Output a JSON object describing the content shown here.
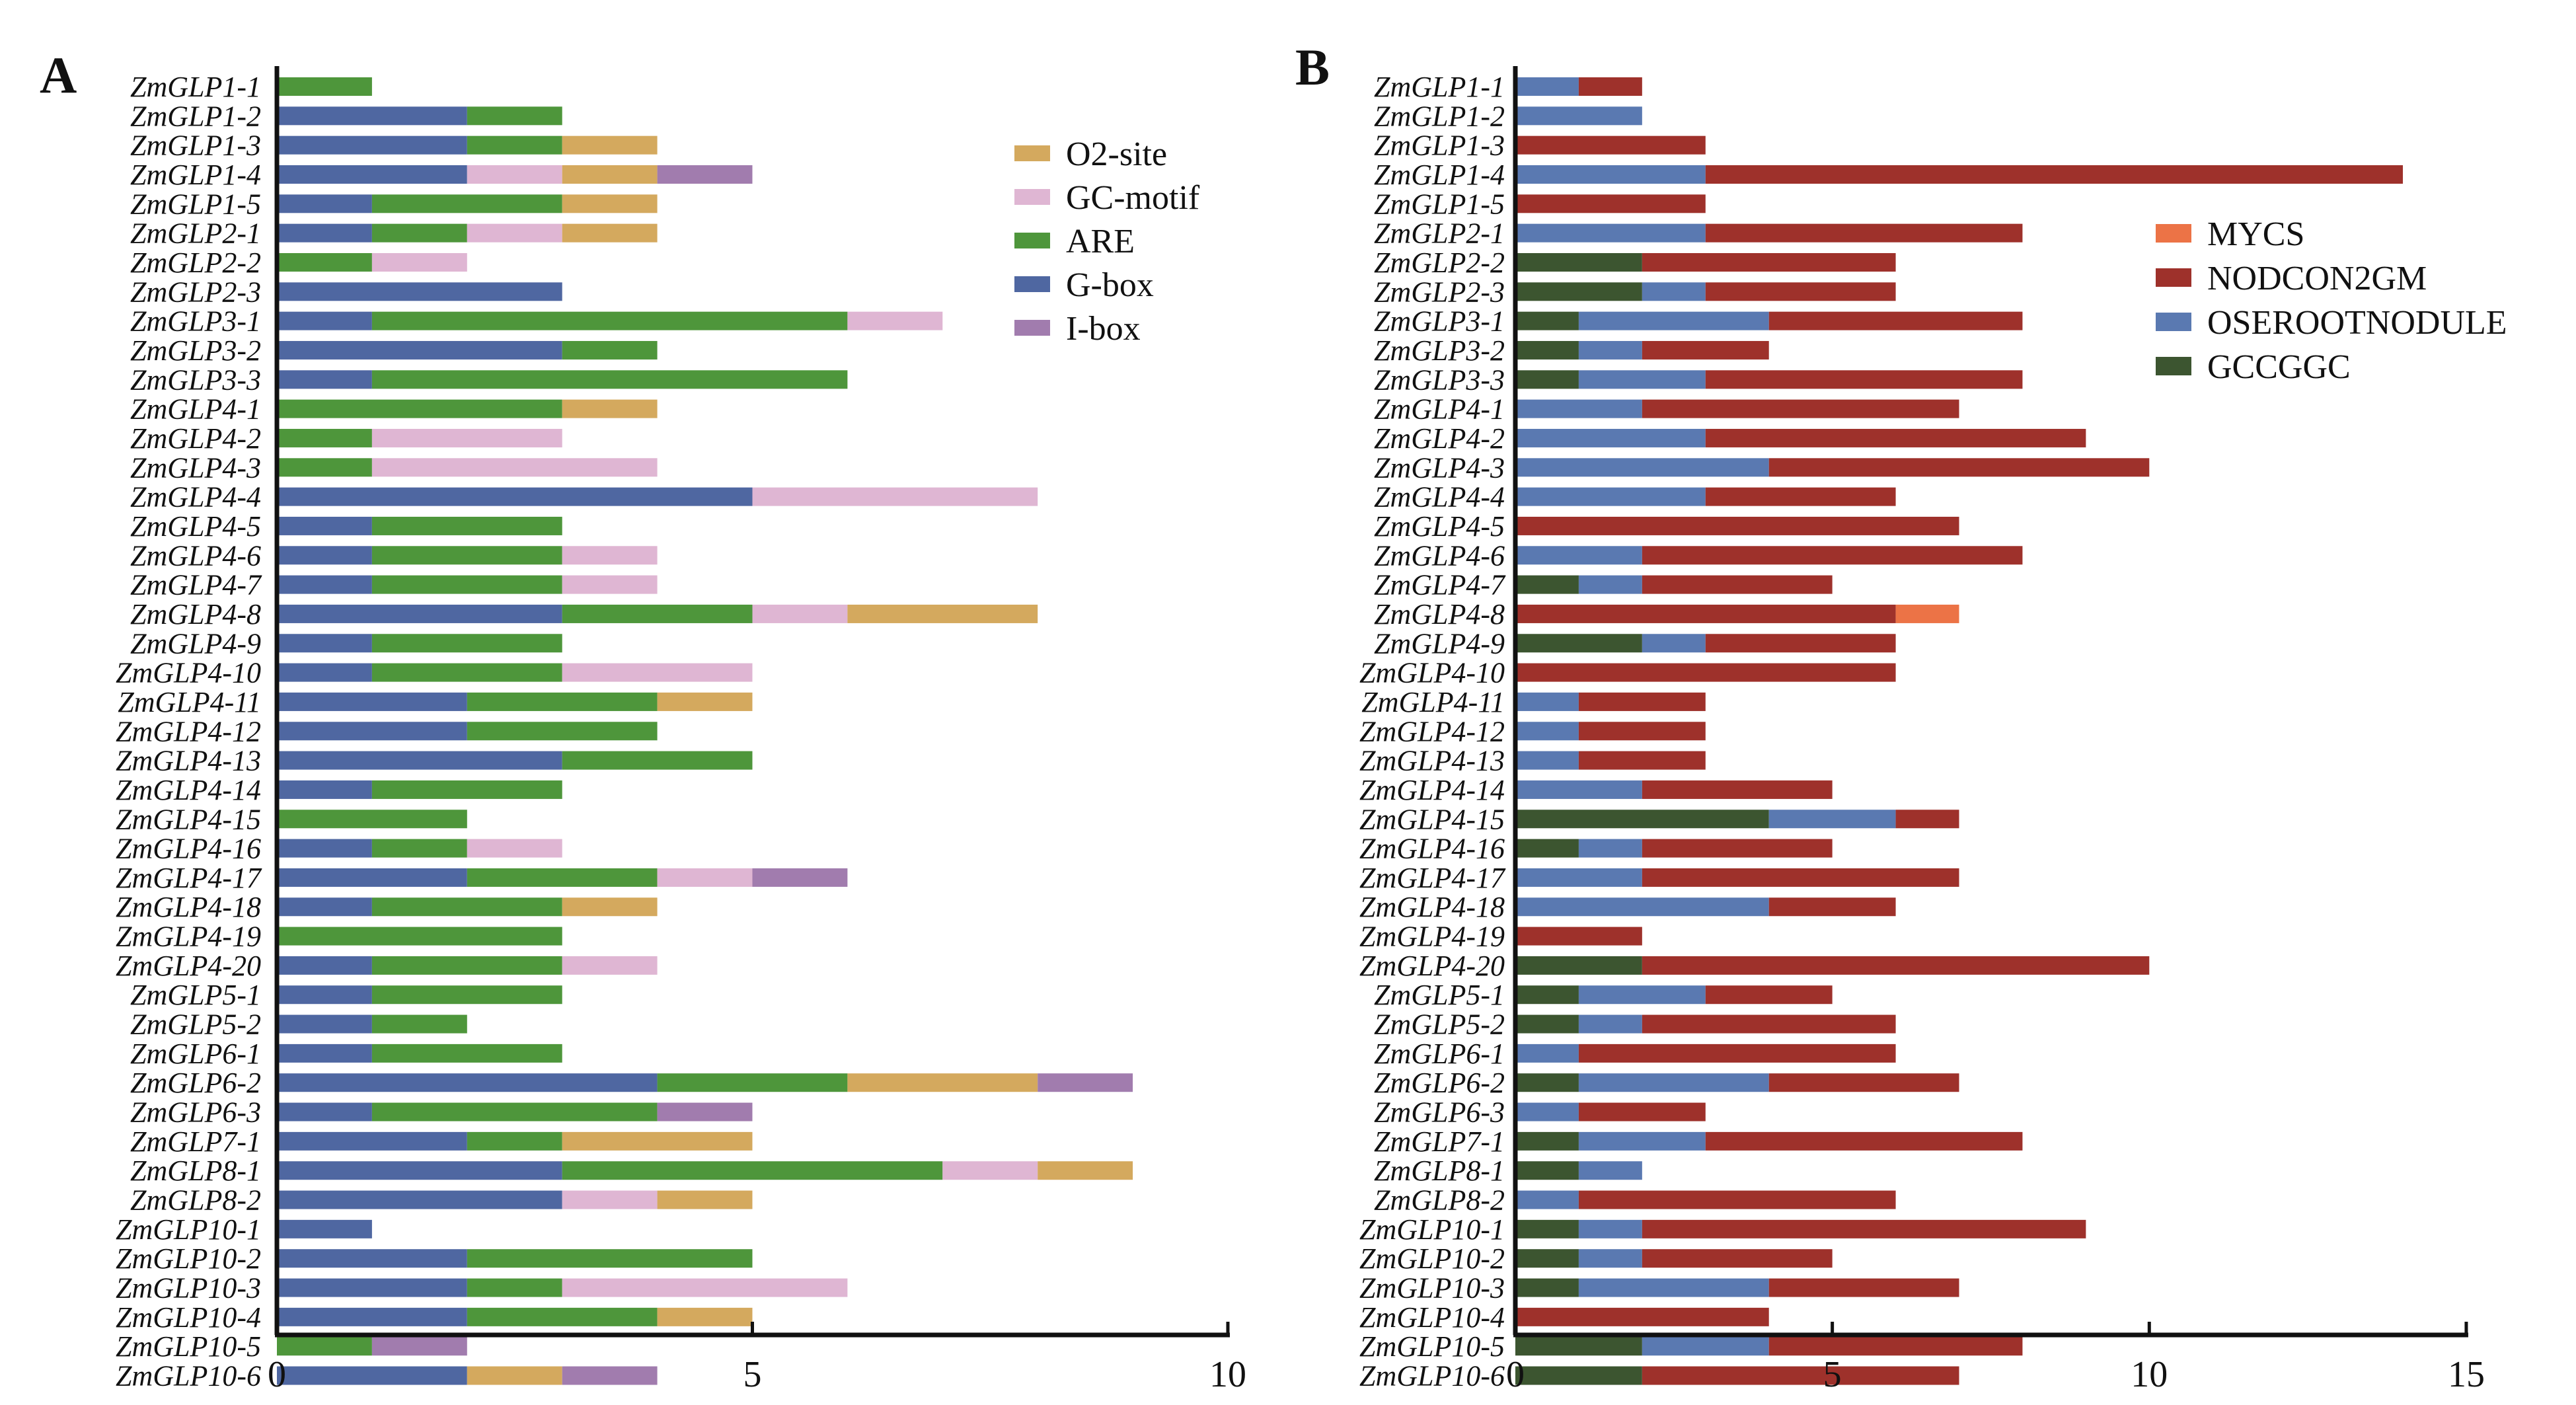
{
  "chart_data": [
    {
      "panel": "A",
      "type": "bar",
      "orientation": "horizontal",
      "stacked": true,
      "title": "",
      "xlabel": "",
      "ylabel": "",
      "xlim": [
        0,
        10
      ],
      "xticks": [
        0,
        5,
        10
      ],
      "grid": false,
      "legend_position": "top-right",
      "categories": [
        "ZmGLP1-1",
        "ZmGLP1-2",
        "ZmGLP1-3",
        "ZmGLP1-4",
        "ZmGLP1-5",
        "ZmGLP2-1",
        "ZmGLP2-2",
        "ZmGLP2-3",
        "ZmGLP3-1",
        "ZmGLP3-2",
        "ZmGLP3-3",
        "ZmGLP4-1",
        "ZmGLP4-2",
        "ZmGLP4-3",
        "ZmGLP4-4",
        "ZmGLP4-5",
        "ZmGLP4-6",
        "ZmGLP4-7",
        "ZmGLP4-8",
        "ZmGLP4-9",
        "ZmGLP4-10",
        "ZmGLP4-11",
        "ZmGLP4-12",
        "ZmGLP4-13",
        "ZmGLP4-14",
        "ZmGLP4-15",
        "ZmGLP4-16",
        "ZmGLP4-17",
        "ZmGLP4-18",
        "ZmGLP4-19",
        "ZmGLP4-20",
        "ZmGLP5-1",
        "ZmGLP5-2",
        "ZmGLP6-1",
        "ZmGLP6-2",
        "ZmGLP6-3",
        "ZmGLP7-1",
        "ZmGLP8-1",
        "ZmGLP8-2",
        "ZmGLP10-1",
        "ZmGLP10-2",
        "ZmGLP10-3",
        "ZmGLP10-4",
        "ZmGLP10-5",
        "ZmGLP10-6"
      ],
      "series": [
        {
          "name": "G-box",
          "color": "#4f67a1",
          "values": [
            0,
            2,
            2,
            2,
            1,
            1,
            0,
            3,
            1,
            3,
            1,
            0,
            0,
            0,
            5,
            1,
            1,
            1,
            3,
            1,
            1,
            2,
            2,
            3,
            1,
            0,
            1,
            2,
            1,
            0,
            1,
            1,
            1,
            1,
            4,
            1,
            2,
            3,
            3,
            1,
            2,
            2,
            2,
            0,
            2
          ]
        },
        {
          "name": "ARE",
          "color": "#4e963b",
          "values": [
            1,
            1,
            1,
            0,
            2,
            1,
            1,
            0,
            5,
            1,
            5,
            3,
            1,
            1,
            0,
            2,
            2,
            2,
            2,
            2,
            2,
            2,
            2,
            2,
            2,
            2,
            1,
            2,
            2,
            3,
            2,
            2,
            1,
            2,
            2,
            3,
            1,
            4,
            0,
            0,
            3,
            1,
            2,
            1,
            0
          ]
        },
        {
          "name": "GC-motif",
          "color": "#dfb6d3",
          "values": [
            0,
            0,
            0,
            1,
            0,
            1,
            1,
            0,
            1,
            0,
            0,
            0,
            2,
            3,
            3,
            0,
            1,
            1,
            1,
            0,
            2,
            0,
            0,
            0,
            0,
            0,
            1,
            1,
            0,
            0,
            1,
            0,
            0,
            0,
            0,
            0,
            0,
            1,
            1,
            0,
            0,
            3,
            0,
            0,
            0
          ]
        },
        {
          "name": "O2-site",
          "color": "#d4a95e",
          "values": [
            0,
            0,
            1,
            1,
            1,
            1,
            0,
            0,
            0,
            0,
            0,
            1,
            0,
            0,
            0,
            0,
            0,
            0,
            2,
            0,
            0,
            1,
            0,
            0,
            0,
            0,
            0,
            0,
            1,
            0,
            0,
            0,
            0,
            0,
            2,
            0,
            2,
            1,
            1,
            0,
            0,
            0,
            1,
            0,
            1
          ]
        },
        {
          "name": "I-box",
          "color": "#a17cae",
          "values": [
            0,
            0,
            0,
            1,
            0,
            0,
            0,
            0,
            0,
            0,
            0,
            0,
            0,
            0,
            0,
            0,
            0,
            0,
            0,
            0,
            0,
            0,
            0,
            0,
            0,
            0,
            0,
            1,
            0,
            0,
            0,
            0,
            0,
            0,
            1,
            1,
            0,
            0,
            0,
            0,
            0,
            0,
            0,
            1,
            1
          ]
        }
      ],
      "legend": [
        "O2-site",
        "GC-motif",
        "ARE",
        "G-box",
        "I-box"
      ]
    },
    {
      "panel": "B",
      "type": "bar",
      "orientation": "horizontal",
      "stacked": true,
      "title": "",
      "xlabel": "",
      "ylabel": "",
      "xlim": [
        0,
        15
      ],
      "xticks": [
        0,
        5,
        10,
        15
      ],
      "grid": false,
      "legend_position": "top-right",
      "categories": [
        "ZmGLP1-1",
        "ZmGLP1-2",
        "ZmGLP1-3",
        "ZmGLP1-4",
        "ZmGLP1-5",
        "ZmGLP2-1",
        "ZmGLP2-2",
        "ZmGLP2-3",
        "ZmGLP3-1",
        "ZmGLP3-2",
        "ZmGLP3-3",
        "ZmGLP4-1",
        "ZmGLP4-2",
        "ZmGLP4-3",
        "ZmGLP4-4",
        "ZmGLP4-5",
        "ZmGLP4-6",
        "ZmGLP4-7",
        "ZmGLP4-8",
        "ZmGLP4-9",
        "ZmGLP4-10",
        "ZmGLP4-11",
        "ZmGLP4-12",
        "ZmGLP4-13",
        "ZmGLP4-14",
        "ZmGLP4-15",
        "ZmGLP4-16",
        "ZmGLP4-17",
        "ZmGLP4-18",
        "ZmGLP4-19",
        "ZmGLP4-20",
        "ZmGLP5-1",
        "ZmGLP5-2",
        "ZmGLP6-1",
        "ZmGLP6-2",
        "ZmGLP6-3",
        "ZmGLP7-1",
        "ZmGLP8-1",
        "ZmGLP8-2",
        "ZmGLP10-1",
        "ZmGLP10-2",
        "ZmGLP10-3",
        "ZmGLP10-4",
        "ZmGLP10-5",
        "ZmGLP10-6"
      ],
      "series": [
        {
          "name": "GCCGGC",
          "color": "#3c5530",
          "values": [
            0,
            0,
            0,
            0,
            0,
            0,
            2,
            2,
            1,
            1,
            1,
            0,
            0,
            0,
            0,
            0,
            0,
            1,
            0,
            2,
            0,
            0,
            0,
            0,
            0,
            4,
            1,
            0,
            0,
            0,
            2,
            1,
            1,
            0,
            1,
            0,
            1,
            1,
            0,
            1,
            1,
            1,
            0,
            2,
            2
          ]
        },
        {
          "name": "OSEROOTNODULE",
          "color": "#5a79b1",
          "values": [
            1,
            2,
            0,
            3,
            0,
            3,
            0,
            1,
            3,
            1,
            2,
            2,
            3,
            4,
            3,
            0,
            2,
            1,
            0,
            1,
            0,
            1,
            1,
            1,
            2,
            2,
            1,
            2,
            4,
            0,
            0,
            2,
            1,
            1,
            3,
            1,
            2,
            1,
            1,
            1,
            1,
            3,
            0,
            2,
            0
          ]
        },
        {
          "name": "NODCON2GM",
          "color": "#9e312b",
          "values": [
            1,
            0,
            3,
            11,
            3,
            5,
            4,
            3,
            4,
            2,
            5,
            5,
            6,
            6,
            3,
            7,
            6,
            3,
            6,
            3,
            6,
            2,
            2,
            2,
            3,
            1,
            3,
            5,
            2,
            2,
            8,
            2,
            4,
            5,
            3,
            2,
            5,
            0,
            5,
            7,
            3,
            3,
            4,
            4,
            5
          ]
        },
        {
          "name": "MYCS",
          "color": "#ec7346",
          "values": [
            0,
            0,
            0,
            0,
            0,
            0,
            0,
            0,
            0,
            0,
            0,
            0,
            0,
            0,
            0,
            0,
            0,
            0,
            1,
            0,
            0,
            0,
            0,
            0,
            0,
            0,
            0,
            0,
            0,
            0,
            0,
            0,
            0,
            0,
            0,
            0,
            0,
            0,
            0,
            0,
            0,
            0,
            0,
            0,
            0
          ]
        }
      ],
      "legend": [
        "MYCS",
        "NODCON2GM",
        "OSEROOTNODULE",
        "GCCGGC"
      ]
    }
  ],
  "panels": {
    "a_letter": "A",
    "b_letter": "B"
  }
}
